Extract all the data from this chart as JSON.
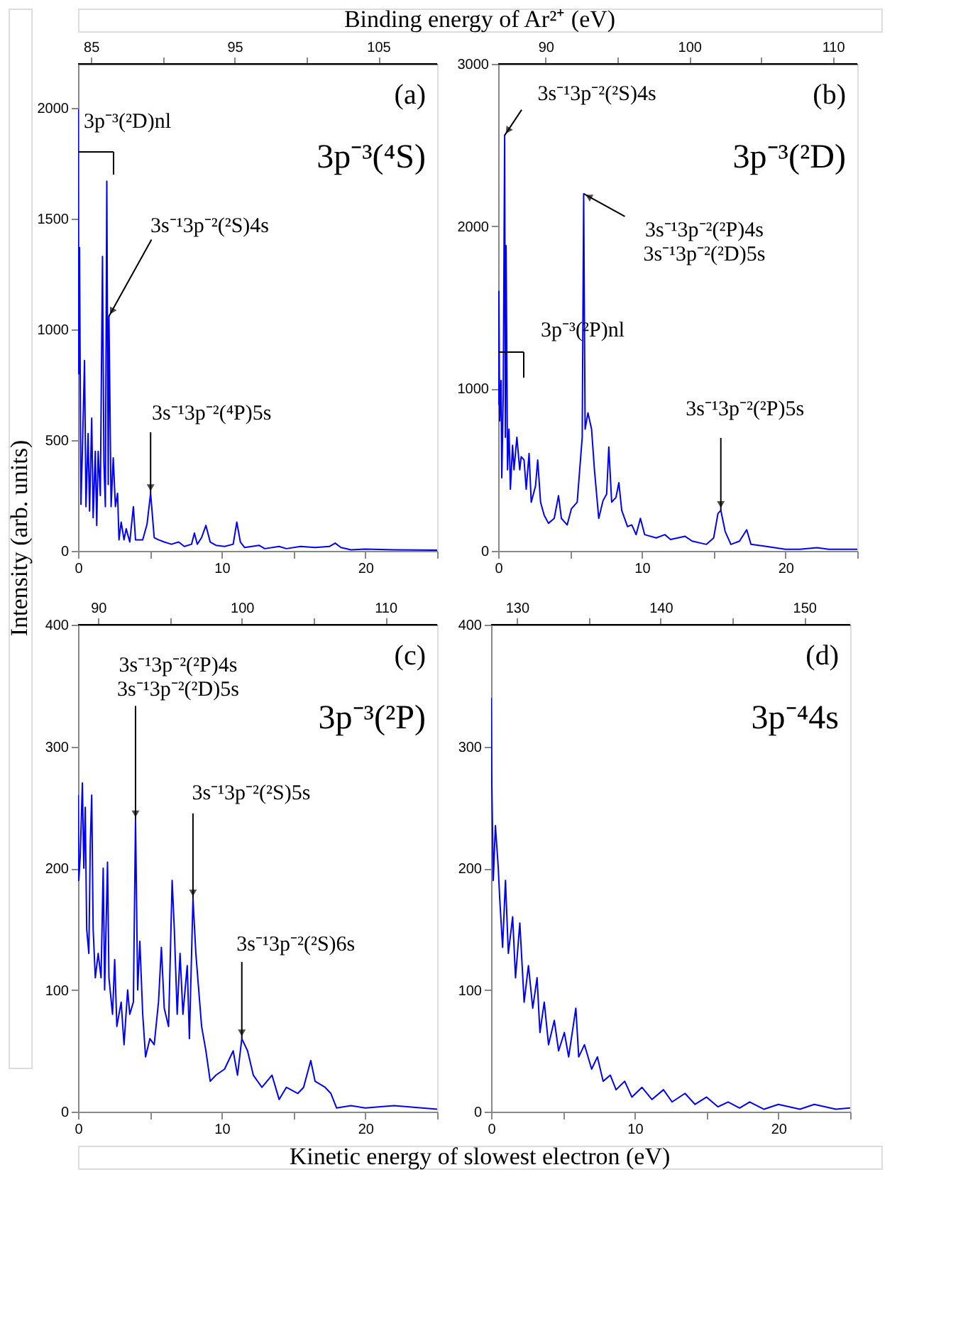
{
  "chart_data": [
    {
      "type": "line",
      "x2label": "Binding energy of Ar²⁺ (eV)",
      "ylabel": "Intensity (arb. units)",
      "color": "#0000ff",
      "xlim": [
        0,
        25
      ],
      "xticks": [
        0,
        {
          "value": 5,
          "label": null
        },
        10,
        {
          "value": 15,
          "label": null
        },
        20,
        {
          "value": 25,
          "label": null
        }
      ],
      "x2lim": [
        84.1,
        109.1
      ],
      "x2ticks": [
        85,
        {
          "value": 90,
          "label": null
        },
        95,
        {
          "value": 100,
          "label": null
        },
        105
      ],
      "ylim": [
        0,
        2200
      ],
      "yticks": [
        0,
        500,
        1000,
        1500,
        2000
      ],
      "annotations": [
        "(a)",
        "3p⁻³(⁴S)",
        "3p⁻³(²D)nl",
        {
          "text": "3s⁻¹3p⁻²(²S)4s",
          "x": 2.15,
          "y": 1060
        },
        {
          "text": "3s⁻¹3p⁻²(⁴P)5s",
          "x": 5.05,
          "y": 260
        }
      ],
      "x": [
        0,
        0.05,
        0.1,
        0.2,
        0.3,
        0.45,
        0.55,
        0.7,
        0.8,
        0.95,
        1.05,
        1.2,
        1.3,
        1.4,
        1.55,
        1.7,
        1.8,
        1.9,
        2.0,
        2.1,
        2.15,
        2.3,
        2.45,
        2.6,
        2.75,
        2.85,
        3.0,
        3.2,
        3.35,
        3.6,
        3.85,
        4.0,
        4.5,
        4.8,
        5.05,
        5.3,
        5.6,
        6.0,
        6.5,
        7.0,
        7.4,
        7.9,
        8.1,
        8.3,
        8.6,
        8.9,
        9.2,
        9.6,
        10.2,
        10.8,
        11.05,
        11.3,
        11.6,
        12.1,
        12.6,
        13,
        14,
        14.5,
        15.5,
        16.5,
        17.5,
        17.9,
        18.3,
        19,
        20,
        22,
        25
      ],
      "values": [
        1996,
        800,
        1370,
        210,
        450,
        860,
        200,
        530,
        180,
        600,
        150,
        450,
        115,
        450,
        250,
        1330,
        400,
        200,
        1670,
        300,
        1060,
        200,
        420,
        200,
        260,
        50,
        130,
        50,
        100,
        40,
        200,
        50,
        50,
        120,
        260,
        60,
        50,
        40,
        30,
        40,
        20,
        30,
        80,
        30,
        60,
        115,
        40,
        25,
        20,
        30,
        130,
        40,
        15,
        20,
        25,
        10,
        20,
        10,
        20,
        15,
        20,
        35,
        15,
        5,
        8,
        5,
        3
      ]
    },
    {
      "type": "line",
      "color": "#0000ff",
      "xlim": [
        0,
        25
      ],
      "xticks": [
        0,
        {
          "value": 5,
          "label": null
        },
        10,
        {
          "value": 15,
          "label": null
        },
        20,
        {
          "value": 25,
          "label": null
        }
      ],
      "x2lim": [
        86.7,
        111.7
      ],
      "x2ticks": [
        90,
        {
          "value": 95,
          "label": null
        },
        100,
        {
          "value": 105,
          "label": null
        },
        110
      ],
      "ylim": [
        0,
        3000
      ],
      "yticks": [
        0,
        1000,
        2000,
        3000
      ],
      "annotations": [
        "(b)",
        "3p⁻³(²D)",
        "3p⁻³(²P)nl",
        {
          "text": "3s⁻¹3p⁻²(²S)4s",
          "x": 0.45,
          "y": 2560
        },
        {
          "text": "3s⁻¹3p⁻²(²P)4s\n3s⁻¹3p⁻²(²D)5s",
          "x": 5.95,
          "y": 2200
        },
        {
          "text": "3s⁻¹3p⁻²(²P)5s",
          "x": 15.5,
          "y": 250
        }
      ],
      "x": [
        0,
        0.05,
        0.1,
        0.2,
        0.25,
        0.35,
        0.45,
        0.5,
        0.55,
        0.65,
        0.75,
        0.85,
        1.0,
        1.1,
        1.3,
        1.5,
        1.6,
        1.8,
        1.95,
        2.15,
        2.3,
        2.6,
        2.75,
        2.95,
        3.2,
        3.5,
        3.9,
        4.2,
        4.4,
        4.8,
        5.1,
        5.5,
        5.85,
        5.95,
        6.05,
        6.25,
        6.5,
        6.7,
        7.0,
        7.3,
        7.55,
        7.7,
        7.9,
        8.2,
        8.4,
        8.6,
        9.0,
        9.3,
        9.6,
        9.9,
        10.2,
        11,
        11.6,
        12,
        13,
        13.5,
        14.5,
        15.0,
        15.3,
        15.5,
        15.8,
        16.2,
        16.8,
        17.3,
        17.6,
        18.5,
        20,
        21,
        22.2,
        23,
        25
      ],
      "values": [
        900,
        1600,
        800,
        1050,
        450,
        950,
        2560,
        700,
        1880,
        500,
        750,
        380,
        650,
        500,
        700,
        500,
        580,
        560,
        380,
        600,
        300,
        400,
        560,
        300,
        220,
        170,
        200,
        340,
        200,
        160,
        260,
        300,
        700,
        2200,
        750,
        850,
        750,
        500,
        200,
        310,
        350,
        640,
        300,
        330,
        420,
        250,
        150,
        160,
        100,
        200,
        100,
        80,
        100,
        70,
        90,
        60,
        40,
        80,
        230,
        250,
        120,
        40,
        60,
        130,
        40,
        30,
        10,
        10,
        20,
        10,
        10
      ]
    },
    {
      "type": "line",
      "xlabel": "Kinetic energy of slowest electron (eV)",
      "color": "#0000ff",
      "xlim": [
        0,
        25
      ],
      "xticks": [
        0,
        {
          "value": 5,
          "label": null
        },
        10,
        {
          "value": 15,
          "label": null
        },
        20,
        {
          "value": 25,
          "label": null
        }
      ],
      "x2lim": [
        88.6,
        113.6
      ],
      "x2ticks": [
        90,
        {
          "value": 95,
          "label": null
        },
        100,
        {
          "value": 105,
          "label": null
        },
        110
      ],
      "ylim": [
        0,
        400
      ],
      "yticks": [
        0,
        100,
        200,
        300,
        400
      ],
      "annotations": [
        "(c)",
        "3p⁻³(²P)",
        {
          "text": "3s⁻¹3p⁻²(²P)4s\n3s⁻¹3p⁻²(²D)5s",
          "x": 4.0,
          "y": 240
        },
        {
          "text": "3s⁻¹3p⁻²(²S)5s",
          "x": 8.0,
          "y": 175
        },
        {
          "text": "3s⁻¹3p⁻²(²S)6s",
          "x": 11.4,
          "y": 60
        }
      ],
      "x": [
        0,
        0.05,
        0.15,
        0.3,
        0.4,
        0.5,
        0.6,
        0.75,
        0.85,
        0.95,
        1.05,
        1.2,
        1.4,
        1.6,
        1.75,
        1.85,
        2.05,
        2.15,
        2.4,
        2.55,
        2.7,
        3.0,
        3.2,
        3.45,
        3.6,
        3.85,
        4.0,
        4.15,
        4.3,
        4.5,
        4.7,
        5.0,
        5.3,
        5.6,
        5.8,
        6.0,
        6.3,
        6.55,
        6.7,
        6.9,
        7.1,
        7.3,
        7.6,
        7.75,
        8.0,
        8.2,
        8.6,
        8.9,
        9.2,
        9.6,
        10.2,
        10.8,
        11.1,
        11.4,
        11.8,
        12.2,
        12.8,
        13.5,
        14,
        14.5,
        15.3,
        15.7,
        16.2,
        16.5,
        17.2,
        17.6,
        18.0,
        19,
        20,
        22,
        25
      ],
      "values": [
        260,
        190,
        210,
        270,
        200,
        250,
        150,
        130,
        220,
        260,
        150,
        110,
        130,
        110,
        200,
        100,
        205,
        110,
        80,
        125,
        70,
        90,
        55,
        100,
        80,
        90,
        240,
        100,
        140,
        80,
        45,
        60,
        55,
        90,
        135,
        85,
        70,
        190,
        150,
        80,
        130,
        80,
        120,
        60,
        175,
        130,
        70,
        50,
        25,
        30,
        35,
        50,
        30,
        60,
        50,
        30,
        20,
        30,
        10,
        20,
        15,
        20,
        42,
        25,
        20,
        15,
        3,
        5,
        3,
        5,
        2
      ]
    },
    {
      "type": "line",
      "color": "#0000ff",
      "xlim": [
        0,
        25
      ],
      "xticks": [
        0,
        {
          "value": 5,
          "label": null
        },
        10,
        {
          "value": 15,
          "label": null
        },
        20,
        {
          "value": 25,
          "label": null
        }
      ],
      "x2lim": [
        128.2,
        153.2
      ],
      "x2ticks": [
        130,
        {
          "value": 135,
          "label": null
        },
        140,
        {
          "value": 145,
          "label": null
        },
        150
      ],
      "ylim": [
        0,
        400
      ],
      "yticks": [
        0,
        100,
        200,
        300,
        400
      ],
      "annotations": [
        "(d)",
        "3p⁻⁴4s"
      ],
      "x": [
        0,
        0.05,
        0.15,
        0.3,
        0.5,
        0.6,
        0.8,
        1.0,
        1.2,
        1.5,
        1.7,
        2.0,
        2.3,
        2.6,
        2.9,
        3.2,
        3.4,
        3.7,
        4.0,
        4.4,
        4.7,
        5.1,
        5.4,
        5.9,
        6.1,
        6.5,
        7.0,
        7.4,
        7.8,
        8.3,
        8.7,
        9.3,
        9.8,
        10.5,
        11.2,
        12,
        12.6,
        13.5,
        14.2,
        15,
        15.8,
        16.5,
        17.3,
        18,
        19,
        20,
        21.5,
        22.5,
        24,
        25
      ],
      "values": [
        340,
        270,
        190,
        235,
        200,
        175,
        135,
        190,
        130,
        160,
        110,
        155,
        90,
        120,
        85,
        110,
        65,
        90,
        55,
        75,
        50,
        65,
        45,
        85,
        45,
        55,
        35,
        45,
        25,
        30,
        18,
        25,
        12,
        20,
        10,
        18,
        8,
        15,
        6,
        12,
        4,
        8,
        3,
        8,
        2,
        6,
        2,
        6,
        2,
        3
      ]
    }
  ]
}
